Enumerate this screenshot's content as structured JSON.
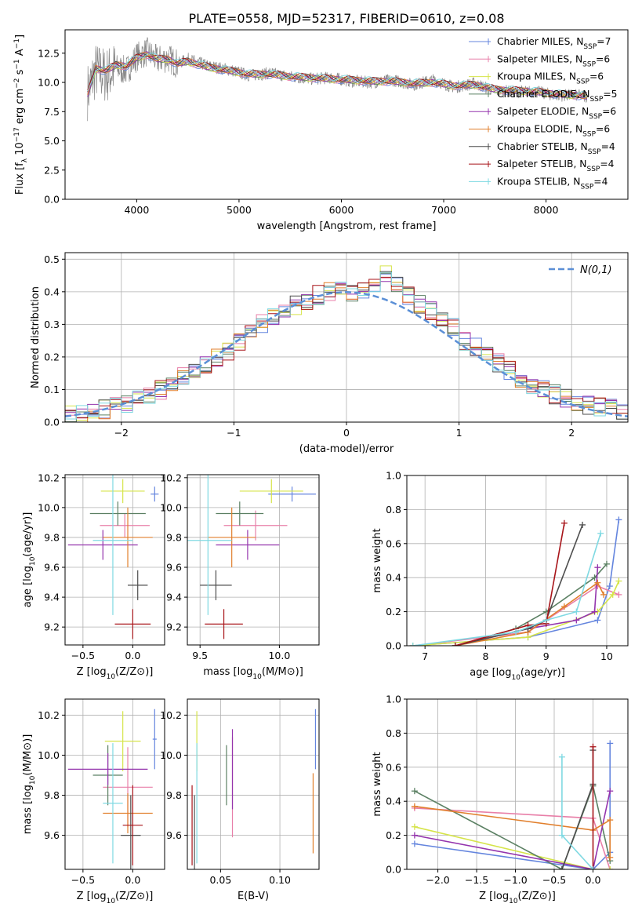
{
  "figure_title": "PLATE=0558, MJD=52317, FIBERID=0610, z=0.08",
  "colors": {
    "Chabrier MILES": "#6485de",
    "Salpeter MILES": "#e87fa8",
    "Kroupa MILES": "#d6e44a",
    "Chabrier ELODIE": "#5b8063",
    "Salpeter ELODIE": "#9434ad",
    "Kroupa ELODIE": "#e17f2c",
    "Chabrier STELIB": "#4d4d4d",
    "Salpeter STELIB": "#a8151a",
    "Kroupa STELIB": "#7fd9e2"
  },
  "chart_data": [
    {
      "id": "spectrum",
      "type": "line",
      "title": "PLATE=0558, MJD=52317, FIBERID=0610, z=0.08",
      "xlabel": "wavelength [Angstrom, rest frame]",
      "ylabel": "Flux [f_λ 10^-17 erg cm^-2 s^-1 A^-1]",
      "xlim": [
        3300,
        8800
      ],
      "ylim": [
        0,
        14.5
      ],
      "xticks": [
        4000,
        5000,
        6000,
        7000,
        8000
      ],
      "yticks": [
        0.0,
        2.5,
        5.0,
        7.5,
        10.0,
        12.5
      ],
      "grid": false,
      "legend_placement": "top-right",
      "data": {
        "name": "data",
        "color": "#888888",
        "x": [
          3520,
          3600,
          3700,
          3800,
          3900,
          4000,
          4100,
          4200,
          4300,
          4400,
          4500,
          4700,
          4900,
          5100,
          5300,
          5500,
          5700,
          5900,
          6100,
          6300,
          6500,
          6700,
          6900,
          7100,
          7300,
          7500,
          7700,
          7900,
          8100,
          8300,
          8400
        ],
        "y": [
          9.2,
          11.0,
          10.6,
          11.2,
          11.0,
          12.2,
          12.6,
          11.9,
          12.1,
          11.6,
          12.0,
          11.4,
          11.1,
          10.6,
          10.8,
          10.5,
          10.3,
          10.4,
          10.1,
          10.0,
          10.2,
          9.8,
          10.2,
          9.6,
          9.9,
          9.3,
          9.2,
          9.2,
          8.9,
          8.9,
          8.8
        ]
      },
      "model": {
        "name": "Kroupa STELIB",
        "x": [
          3520,
          3600,
          3700,
          3800,
          3900,
          4000,
          4100,
          4200,
          4300,
          4400,
          4500,
          4700,
          4900,
          5100,
          5300,
          5500,
          5700,
          5900,
          6100,
          6300,
          6500,
          6700,
          6900,
          7100,
          7300,
          7500,
          7700,
          7900,
          8100,
          8300,
          8400
        ],
        "y": [
          9.0,
          11.2,
          11.0,
          11.5,
          11.4,
          12.1,
          12.4,
          12.0,
          12.0,
          11.6,
          11.8,
          11.3,
          11.0,
          10.7,
          10.7,
          10.5,
          10.4,
          10.3,
          10.2,
          10.1,
          10.1,
          9.9,
          10.0,
          9.7,
          9.8,
          9.4,
          9.3,
          9.2,
          9.0,
          8.9,
          8.8
        ]
      },
      "legend": [
        {
          "name": "Chabrier MILES, N_SSP=7",
          "color": "#6485de"
        },
        {
          "name": "Salpeter MILES, N_SSP=6",
          "color": "#e87fa8"
        },
        {
          "name": "Kroupa MILES, N_SSP=6",
          "color": "#d6e44a"
        },
        {
          "name": "Chabrier ELODIE, N_SSP=5",
          "color": "#5b8063"
        },
        {
          "name": "Salpeter ELODIE, N_SSP=6",
          "color": "#9434ad"
        },
        {
          "name": "Kroupa ELODIE, N_SSP=6",
          "color": "#e17f2c"
        },
        {
          "name": "Chabrier STELIB, N_SSP=4",
          "color": "#4d4d4d"
        },
        {
          "name": "Salpeter STELIB, N_SSP=4",
          "color": "#a8151a"
        },
        {
          "name": "Kroupa STELIB, N_SSP=4",
          "color": "#7fd9e2"
        }
      ]
    },
    {
      "id": "residuals",
      "type": "line",
      "xlabel": "(data-model)/error",
      "ylabel": "Normed distribution",
      "xlim": [
        -2.5,
        2.5
      ],
      "ylim": [
        0,
        0.52
      ],
      "xticks": [
        -2,
        -1,
        0,
        1,
        2
      ],
      "yticks": [
        0.0,
        0.1,
        0.2,
        0.3,
        0.4,
        0.5
      ],
      "grid": true,
      "legend_placement": "top-right",
      "gaussian": {
        "name": "N(0,1)",
        "color": "#5b8fd6"
      },
      "bins": [
        -2.5,
        -2.4,
        -2.3,
        -2.2,
        -2.1,
        -2.0,
        -1.9,
        -1.8,
        -1.7,
        -1.6,
        -1.5,
        -1.4,
        -1.3,
        -1.2,
        -1.1,
        -1.0,
        -0.9,
        -0.8,
        -0.7,
        -0.6,
        -0.5,
        -0.4,
        -0.3,
        -0.2,
        -0.1,
        0.0,
        0.1,
        0.2,
        0.3,
        0.4,
        0.5,
        0.6,
        0.7,
        0.8,
        0.9,
        1.0,
        1.1,
        1.2,
        1.3,
        1.4,
        1.5,
        1.6,
        1.7,
        1.8,
        1.9,
        2.0,
        2.1,
        2.2,
        2.3,
        2.4,
        2.5
      ],
      "base_hist": [
        0.025,
        0.027,
        0.033,
        0.04,
        0.048,
        0.055,
        0.067,
        0.082,
        0.1,
        0.115,
        0.14,
        0.16,
        0.18,
        0.2,
        0.22,
        0.245,
        0.27,
        0.3,
        0.32,
        0.34,
        0.36,
        0.375,
        0.39,
        0.4,
        0.405,
        0.4,
        0.41,
        0.42,
        0.45,
        0.43,
        0.39,
        0.36,
        0.34,
        0.31,
        0.29,
        0.25,
        0.23,
        0.2,
        0.18,
        0.16,
        0.13,
        0.11,
        0.1,
        0.085,
        0.075,
        0.06,
        0.05,
        0.045,
        0.04,
        0.035
      ],
      "series": [
        {
          "name": "Chabrier MILES",
          "color": "#6485de"
        },
        {
          "name": "Salpeter MILES",
          "color": "#e87fa8"
        },
        {
          "name": "Kroupa MILES",
          "color": "#d6e44a"
        },
        {
          "name": "Chabrier ELODIE",
          "color": "#5b8063"
        },
        {
          "name": "Salpeter ELODIE",
          "color": "#9434ad"
        },
        {
          "name": "Kroupa ELODIE",
          "color": "#e17f2c"
        },
        {
          "name": "Chabrier STELIB",
          "color": "#4d4d4d"
        },
        {
          "name": "Salpeter STELIB",
          "color": "#a8151a"
        },
        {
          "name": "Kroupa STELIB",
          "color": "#7fd9e2"
        }
      ]
    },
    {
      "id": "age-vs-Z",
      "type": "scatter",
      "xlabel": "Z [log10(Z/Z⊙)]",
      "ylabel": "age [log10(age/yr)]",
      "xlim": [
        -0.68,
        0.32
      ],
      "ylim": [
        9.08,
        10.22
      ],
      "xticks": [
        -0.5,
        0.0
      ],
      "yticks": [
        9.2,
        9.4,
        9.6,
        9.8,
        10.0,
        10.2
      ],
      "grid": true,
      "points": [
        {
          "series": "Chabrier MILES",
          "x": 0.22,
          "y": 10.09,
          "xerr": 0.04,
          "yerr": 0.05
        },
        {
          "series": "Salpeter MILES",
          "x": -0.08,
          "y": 9.88,
          "xerr": 0.25,
          "yerr": 0.08
        },
        {
          "series": "Kroupa MILES",
          "x": -0.1,
          "y": 10.11,
          "xerr": 0.22,
          "yerr": 0.08
        },
        {
          "series": "Chabrier ELODIE",
          "x": -0.15,
          "y": 9.96,
          "xerr": 0.28,
          "yerr": 0.08
        },
        {
          "series": "Salpeter ELODIE",
          "x": -0.3,
          "y": 9.75,
          "xerr": 0.35,
          "yerr": 0.1
        },
        {
          "series": "Kroupa ELODIE",
          "x": -0.05,
          "y": 9.8,
          "xerr": 0.25,
          "yerr": 0.2
        },
        {
          "series": "Chabrier STELIB",
          "x": 0.05,
          "y": 9.48,
          "xerr": 0.1,
          "yerr": 0.1
        },
        {
          "series": "Salpeter STELIB",
          "x": 0.0,
          "y": 9.22,
          "xerr": 0.18,
          "yerr": 0.1
        },
        {
          "series": "Kroupa STELIB",
          "x": -0.2,
          "y": 9.78,
          "xerr": 0.2,
          "yerr": 0.5
        }
      ]
    },
    {
      "id": "age-vs-mass",
      "type": "scatter",
      "xlabel": "mass [log10(M/M⊙)]",
      "ylabel": "",
      "xlim": [
        9.42,
        10.25
      ],
      "ylim": [
        9.08,
        10.22
      ],
      "xticks": [
        9.5,
        10.0
      ],
      "yticks": [
        9.2,
        9.4,
        9.6,
        9.8,
        10.0,
        10.2
      ],
      "grid": true,
      "points": [
        {
          "series": "Chabrier MILES",
          "x": 10.08,
          "y": 10.09,
          "xerr": 0.15,
          "yerr": 0.05
        },
        {
          "series": "Salpeter MILES",
          "x": 9.85,
          "y": 9.88,
          "xerr": 0.2,
          "yerr": 0.1
        },
        {
          "series": "Kroupa MILES",
          "x": 9.95,
          "y": 10.11,
          "xerr": 0.2,
          "yerr": 0.08
        },
        {
          "series": "Chabrier ELODIE",
          "x": 9.75,
          "y": 9.96,
          "xerr": 0.15,
          "yerr": 0.08
        },
        {
          "series": "Salpeter ELODIE",
          "x": 9.8,
          "y": 9.75,
          "xerr": 0.2,
          "yerr": 0.1
        },
        {
          "series": "Kroupa ELODIE",
          "x": 9.7,
          "y": 9.8,
          "xerr": 0.15,
          "yerr": 0.2
        },
        {
          "series": "Chabrier STELIB",
          "x": 9.6,
          "y": 9.48,
          "xerr": 0.1,
          "yerr": 0.1
        },
        {
          "series": "Salpeter STELIB",
          "x": 9.65,
          "y": 9.22,
          "xerr": 0.12,
          "yerr": 0.1
        },
        {
          "series": "Kroupa STELIB",
          "x": 9.55,
          "y": 9.78,
          "xerr": 0.15,
          "yerr": 0.5
        }
      ]
    },
    {
      "id": "mass-weight-vs-age",
      "type": "line",
      "xlabel": "age [log10(age/yr)]",
      "ylabel": "mass weight",
      "xlim": [
        6.7,
        10.35
      ],
      "ylim": [
        0,
        1
      ],
      "xticks": [
        7,
        8,
        9,
        10
      ],
      "yticks": [
        0.0,
        0.2,
        0.4,
        0.6,
        0.8,
        1.0
      ],
      "grid": true,
      "series": [
        {
          "name": "Chabrier MILES",
          "x": [
            6.8,
            8.7,
            9.85,
            10.05,
            10.2
          ],
          "y": [
            0.0,
            0.05,
            0.15,
            0.35,
            0.74
          ]
        },
        {
          "name": "Salpeter MILES",
          "x": [
            6.8,
            8.7,
            9.85,
            10.2
          ],
          "y": [
            0.0,
            0.08,
            0.35,
            0.3
          ]
        },
        {
          "name": "Kroupa MILES",
          "x": [
            6.8,
            8.7,
            9.85,
            10.1,
            10.2
          ],
          "y": [
            0.0,
            0.05,
            0.2,
            0.3,
            0.38
          ]
        },
        {
          "name": "Chabrier ELODIE",
          "x": [
            7.5,
            8.5,
            9.0,
            9.8,
            10.0
          ],
          "y": [
            0.0,
            0.1,
            0.2,
            0.4,
            0.48
          ]
        },
        {
          "name": "Salpeter ELODIE",
          "x": [
            7.5,
            8.7,
            9.5,
            9.8,
            9.85
          ],
          "y": [
            0.0,
            0.1,
            0.15,
            0.2,
            0.46
          ]
        },
        {
          "name": "Kroupa ELODIE",
          "x": [
            7.5,
            8.7,
            9.3,
            9.85,
            9.95
          ],
          "y": [
            0.0,
            0.08,
            0.23,
            0.37,
            0.3
          ]
        },
        {
          "name": "Chabrier STELIB",
          "x": [
            7.5,
            8.7,
            9.0,
            9.6
          ],
          "y": [
            0.0,
            0.1,
            0.15,
            0.71
          ]
        },
        {
          "name": "Salpeter STELIB",
          "x": [
            7.5,
            8.7,
            9.0,
            9.3
          ],
          "y": [
            0.0,
            0.12,
            0.13,
            0.72
          ]
        },
        {
          "name": "Kroupa STELIB",
          "x": [
            6.8,
            8.5,
            9.0,
            9.5,
            9.9
          ],
          "y": [
            0.0,
            0.08,
            0.15,
            0.2,
            0.66
          ]
        }
      ]
    },
    {
      "id": "mass-vs-Z",
      "type": "scatter",
      "xlabel": "Z [log10(Z/Z⊙)]",
      "ylabel": "mass [log10(M/M⊙)]",
      "xlim": [
        -0.68,
        0.32
      ],
      "ylim": [
        9.43,
        10.28
      ],
      "xticks": [
        -0.5,
        0.0
      ],
      "yticks": [
        9.6,
        9.8,
        10.0,
        10.2
      ],
      "grid": true,
      "points": [
        {
          "series": "Chabrier MILES",
          "x": 0.22,
          "y": 10.08,
          "xerr": 0.02,
          "yerr": 0.15
        },
        {
          "series": "Salpeter MILES",
          "x": -0.05,
          "y": 9.84,
          "xerr": 0.25,
          "yerr": 0.2
        },
        {
          "series": "Kroupa MILES",
          "x": -0.1,
          "y": 10.07,
          "xerr": 0.18,
          "yerr": 0.15
        },
        {
          "series": "Chabrier ELODIE",
          "x": -0.25,
          "y": 9.9,
          "xerr": 0.15,
          "yerr": 0.15
        },
        {
          "series": "Salpeter ELODIE",
          "x": -0.25,
          "y": 9.93,
          "xerr": 0.4,
          "yerr": 0.08
        },
        {
          "series": "Kroupa ELODIE",
          "x": -0.05,
          "y": 9.71,
          "xerr": 0.25,
          "yerr": 0.1
        },
        {
          "series": "Chabrier STELIB",
          "x": -0.02,
          "y": 9.6,
          "xerr": 0.1,
          "yerr": 0.2
        },
        {
          "series": "Salpeter STELIB",
          "x": 0.0,
          "y": 9.65,
          "xerr": 0.1,
          "yerr": 0.2
        },
        {
          "series": "Kroupa STELIB",
          "x": -0.2,
          "y": 9.76,
          "xerr": 0.1,
          "yerr": 0.3
        }
      ]
    },
    {
      "id": "mass-vs-ebv",
      "type": "scatter",
      "xlabel": "E(B-V)",
      "ylabel": "",
      "xlim": [
        0.022,
        0.133
      ],
      "ylim": [
        9.43,
        10.28
      ],
      "xticks": [
        0.05,
        0.1
      ],
      "yticks": [
        9.6,
        9.8,
        10.0,
        10.2
      ],
      "grid": true,
      "points": [
        {
          "series": "Chabrier MILES",
          "x": 0.13,
          "y": 10.08,
          "xerr": 0.0,
          "yerr": 0.15
        },
        {
          "series": "Salpeter MILES",
          "x": 0.06,
          "y": 9.84,
          "xerr": 0.0,
          "yerr": 0.25
        },
        {
          "series": "Kroupa MILES",
          "x": 0.03,
          "y": 10.07,
          "xerr": 0.0,
          "yerr": 0.15
        },
        {
          "series": "Chabrier ELODIE",
          "x": 0.055,
          "y": 9.9,
          "xerr": 0.0,
          "yerr": 0.15
        },
        {
          "series": "Salpeter ELODIE",
          "x": 0.06,
          "y": 9.93,
          "xerr": 0.0,
          "yerr": 0.2
        },
        {
          "series": "Kroupa ELODIE",
          "x": 0.128,
          "y": 9.71,
          "xerr": 0.0,
          "yerr": 0.2
        },
        {
          "series": "Chabrier STELIB",
          "x": 0.028,
          "y": 9.6,
          "xerr": 0.0,
          "yerr": 0.2
        },
        {
          "series": "Salpeter STELIB",
          "x": 0.026,
          "y": 9.65,
          "xerr": 0.0,
          "yerr": 0.2
        },
        {
          "series": "Kroupa STELIB",
          "x": 0.03,
          "y": 9.76,
          "xerr": 0.0,
          "yerr": 0.3
        }
      ]
    },
    {
      "id": "mass-weight-vs-Z",
      "type": "line",
      "xlabel": "Z [log10(Z/Z⊙)]",
      "ylabel": "mass weight",
      "xlim": [
        -2.4,
        0.45
      ],
      "ylim": [
        0,
        1
      ],
      "xticks": [
        -2.0,
        -1.5,
        -1.0,
        -0.5,
        0.0
      ],
      "yticks": [
        0.0,
        0.2,
        0.4,
        0.6,
        0.8,
        1.0
      ],
      "grid": true,
      "series": [
        {
          "name": "Chabrier MILES",
          "x": [
            -2.3,
            0.0,
            0.22,
            0.22
          ],
          "y": [
            0.15,
            0.0,
            0.1,
            0.74
          ]
        },
        {
          "name": "Salpeter MILES",
          "x": [
            -2.3,
            0.0,
            0.22
          ],
          "y": [
            0.36,
            0.3,
            0.0
          ]
        },
        {
          "name": "Kroupa MILES",
          "x": [
            -2.3,
            0.0,
            0.22
          ],
          "y": [
            0.25,
            0.0,
            0.0
          ]
        },
        {
          "name": "Chabrier ELODIE",
          "x": [
            -2.3,
            -0.4,
            0.0,
            0.22
          ],
          "y": [
            0.46,
            0.0,
            0.49,
            0.05
          ]
        },
        {
          "name": "Salpeter ELODIE",
          "x": [
            -2.3,
            0.0,
            0.22
          ],
          "y": [
            0.2,
            0.0,
            0.46
          ]
        },
        {
          "name": "Kroupa ELODIE",
          "x": [
            -2.3,
            0.0,
            0.22,
            0.22
          ],
          "y": [
            0.37,
            0.23,
            0.29,
            0.07
          ]
        },
        {
          "name": "Chabrier STELIB",
          "x": [
            -0.4,
            0.0,
            0.0
          ],
          "y": [
            0.0,
            0.5,
            0.7
          ]
        },
        {
          "name": "Salpeter STELIB",
          "x": [
            0.0,
            0.0
          ],
          "y": [
            0.0,
            0.72
          ]
        },
        {
          "name": "Kroupa STELIB",
          "x": [
            -0.4,
            -0.4,
            0.0
          ],
          "y": [
            0.66,
            0.2,
            0.0
          ]
        }
      ]
    }
  ]
}
